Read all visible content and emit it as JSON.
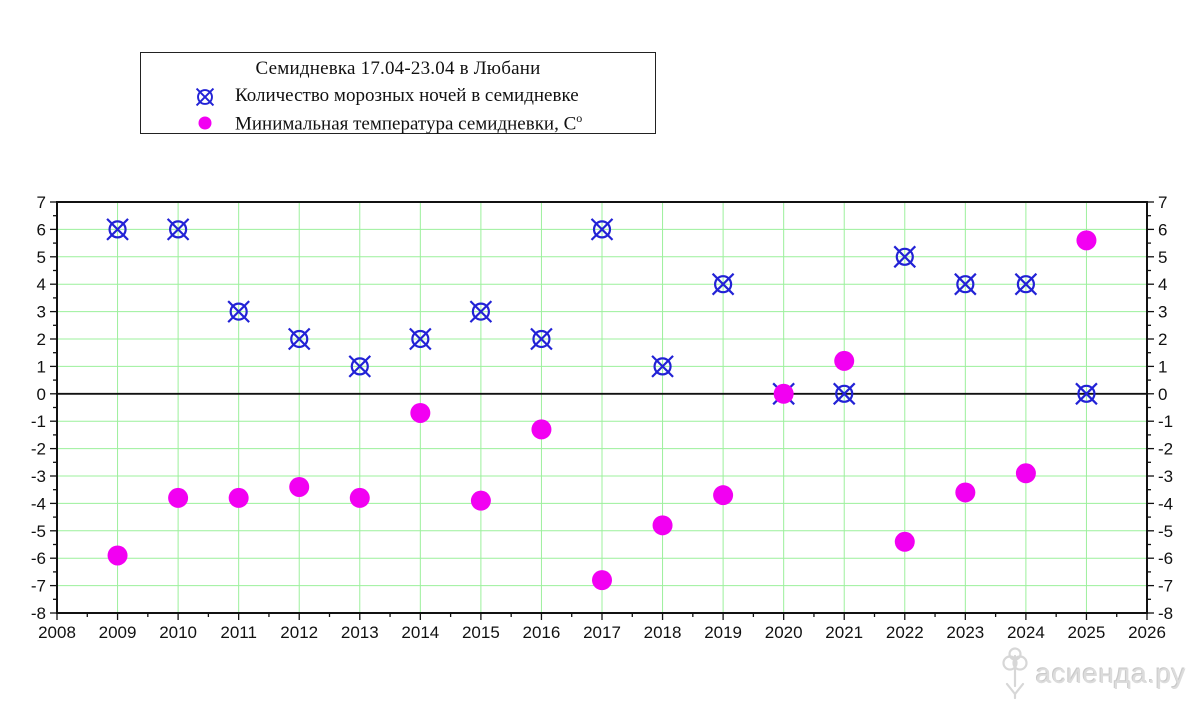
{
  "legend": {
    "title": "Семидневка 17.04-23.04 в Любани",
    "items": [
      {
        "marker": "circle-x-icon",
        "label": "Количество морозных ночей в семидневке"
      },
      {
        "marker": "dot-icon",
        "label": "Минимальная температура семидневки, С",
        "label_sup": "о"
      }
    ]
  },
  "watermark": {
    "text": "асиенда.ру"
  },
  "chart_data": {
    "type": "scatter",
    "title": "Семидневка 17.04-23.04 в Любани",
    "x": [
      2009,
      2010,
      2011,
      2012,
      2013,
      2014,
      2015,
      2016,
      2017,
      2018,
      2019,
      2020,
      2021,
      2022,
      2023,
      2024,
      2025
    ],
    "series": [
      {
        "name": "Количество морозных ночей в семидневке",
        "marker": "circle-x",
        "color": "#2222d6",
        "values": [
          6,
          6,
          3,
          2,
          1,
          2,
          3,
          2,
          6,
          1,
          4,
          0,
          0,
          5,
          4,
          4,
          0
        ]
      },
      {
        "name": "Минимальная температура семидневки, С°",
        "marker": "circle",
        "color": "#f200f2",
        "values": [
          -5.9,
          -3.8,
          -3.8,
          -3.4,
          -3.8,
          -0.7,
          -3.9,
          -1.3,
          -6.8,
          -4.8,
          -3.7,
          0,
          1.2,
          -5.4,
          -3.6,
          -2.9,
          5.6
        ]
      }
    ],
    "xlim": [
      2008,
      2026
    ],
    "ylim": [
      -8,
      7
    ],
    "x_ticks": [
      2008,
      2009,
      2010,
      2011,
      2012,
      2013,
      2014,
      2015,
      2016,
      2017,
      2018,
      2019,
      2020,
      2021,
      2022,
      2023,
      2024,
      2025,
      2026
    ],
    "y_ticks": [
      7,
      6,
      5,
      4,
      3,
      2,
      1,
      0,
      -1,
      -2,
      -3,
      -4,
      -5,
      -6,
      -7,
      -8
    ],
    "grid": true,
    "grid_color": "#9cf09c",
    "axis_color": "#111111",
    "zero_line": true,
    "legend_position": "top-left",
    "y_labels_both_sides": true
  }
}
